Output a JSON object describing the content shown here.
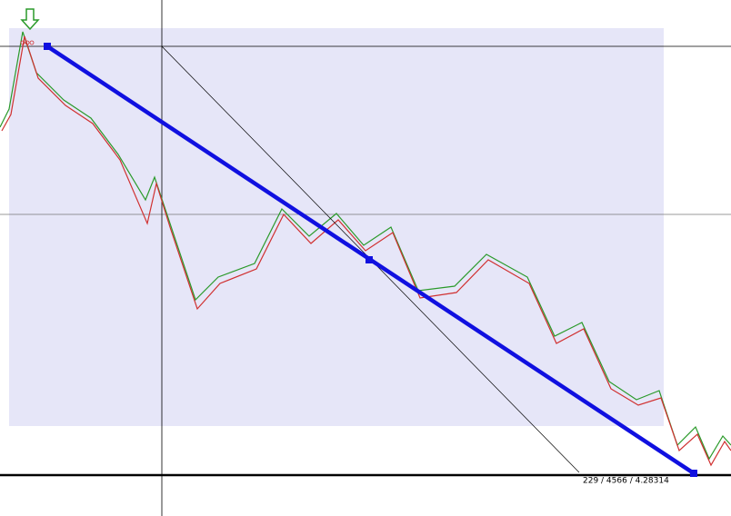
{
  "chart_window": {
    "measure_label": "229 / 4566 / 4.28314"
  }
}
